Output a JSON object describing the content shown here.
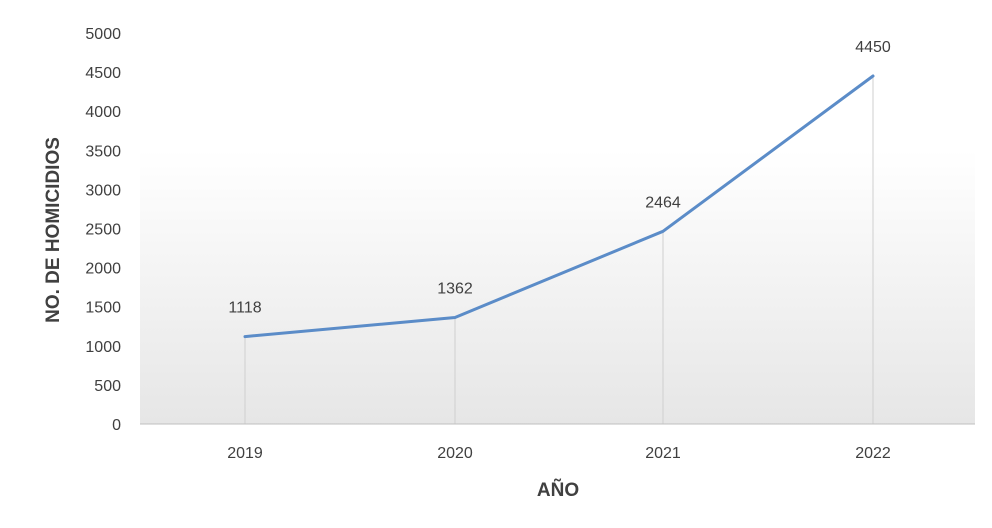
{
  "chart_data": {
    "type": "line",
    "categories": [
      "2019",
      "2020",
      "2021",
      "2022"
    ],
    "series": [
      {
        "values": [
          1118,
          1362,
          2464,
          4450
        ]
      }
    ],
    "data_labels": [
      "1118",
      "1362",
      "2464",
      "4450"
    ],
    "title": "",
    "xlabel": "AÑO",
    "ylabel": "NO. DE HOMICIDIOS",
    "ylim": [
      0,
      5000
    ],
    "yticks": [
      "0",
      "500",
      "1000",
      "1500",
      "2000",
      "2500",
      "3000",
      "3500",
      "4000",
      "4500",
      "5000"
    ],
    "grid": false,
    "drop_lines": true,
    "legend": "none",
    "line_color": "#5b8cc8"
  }
}
